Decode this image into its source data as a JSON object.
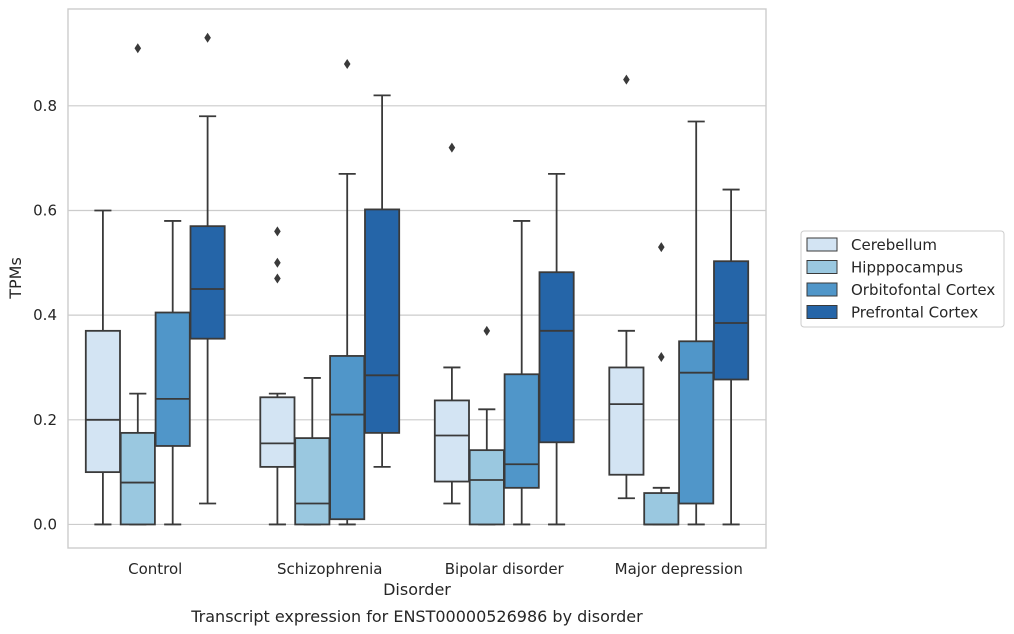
{
  "chart_data": {
    "type": "box",
    "caption": "Transcript expression for ENST00000526986 by disorder",
    "xlabel": "Disorder",
    "ylabel": "TPMs",
    "ylim": [
      -0.045,
      0.985
    ],
    "yticks": [
      0.0,
      0.2,
      0.4,
      0.6,
      0.8
    ],
    "ytick_labels": [
      "0.0",
      "0.2",
      "0.4",
      "0.6",
      "0.8"
    ],
    "grid": "horizontal",
    "legend_position": "right",
    "categories": [
      "Control",
      "Schizophrenia",
      "Bipolar disorder",
      "Major depression"
    ],
    "series": [
      {
        "name": "Cerebellum",
        "color": "#d3e4f3",
        "boxes": [
          {
            "whislo": 0.0,
            "q1": 0.1,
            "med": 0.2,
            "q3": 0.37,
            "whishi": 0.6,
            "fliers": []
          },
          {
            "whislo": 0.0,
            "q1": 0.11,
            "med": 0.155,
            "q3": 0.243,
            "whishi": 0.25,
            "fliers": [
              0.47,
              0.5,
              0.56
            ]
          },
          {
            "whislo": 0.04,
            "q1": 0.082,
            "med": 0.17,
            "q3": 0.237,
            "whishi": 0.3,
            "fliers": [
              0.72
            ]
          },
          {
            "whislo": 0.05,
            "q1": 0.095,
            "med": 0.23,
            "q3": 0.3,
            "whishi": 0.37,
            "fliers": [
              0.85
            ]
          }
        ]
      },
      {
        "name": "Hipppocampus",
        "color": "#9ac8e0",
        "boxes": [
          {
            "whislo": 0.0,
            "q1": 0.0,
            "med": 0.08,
            "q3": 0.175,
            "whishi": 0.25,
            "fliers": [
              0.91
            ]
          },
          {
            "whislo": 0.0,
            "q1": 0.0,
            "med": 0.04,
            "q3": 0.165,
            "whishi": 0.28,
            "fliers": []
          },
          {
            "whislo": 0.0,
            "q1": 0.0,
            "med": 0.085,
            "q3": 0.142,
            "whishi": 0.22,
            "fliers": [
              0.37
            ]
          },
          {
            "whislo": 0.0,
            "q1": 0.0,
            "med": 0.0,
            "q3": 0.06,
            "whishi": 0.07,
            "fliers": [
              0.32,
              0.53
            ]
          }
        ]
      },
      {
        "name": "Orbitofontal Cortex",
        "color": "#5096c9",
        "boxes": [
          {
            "whislo": 0.0,
            "q1": 0.15,
            "med": 0.24,
            "q3": 0.405,
            "whishi": 0.58,
            "fliers": []
          },
          {
            "whislo": 0.0,
            "q1": 0.01,
            "med": 0.21,
            "q3": 0.322,
            "whishi": 0.67,
            "fliers": [
              0.88
            ]
          },
          {
            "whislo": 0.0,
            "q1": 0.07,
            "med": 0.115,
            "q3": 0.287,
            "whishi": 0.58,
            "fliers": []
          },
          {
            "whislo": 0.0,
            "q1": 0.04,
            "med": 0.29,
            "q3": 0.35,
            "whishi": 0.77,
            "fliers": []
          }
        ]
      },
      {
        "name": "Prefrontal Cortex",
        "color": "#2565a8",
        "boxes": [
          {
            "whislo": 0.04,
            "q1": 0.355,
            "med": 0.45,
            "q3": 0.57,
            "whishi": 0.78,
            "fliers": [
              0.93
            ]
          },
          {
            "whislo": 0.11,
            "q1": 0.175,
            "med": 0.285,
            "q3": 0.602,
            "whishi": 0.82,
            "fliers": []
          },
          {
            "whislo": 0.0,
            "q1": 0.157,
            "med": 0.37,
            "q3": 0.482,
            "whishi": 0.67,
            "fliers": []
          },
          {
            "whislo": 0.0,
            "q1": 0.277,
            "med": 0.385,
            "q3": 0.503,
            "whishi": 0.64,
            "fliers": []
          }
        ]
      }
    ]
  }
}
